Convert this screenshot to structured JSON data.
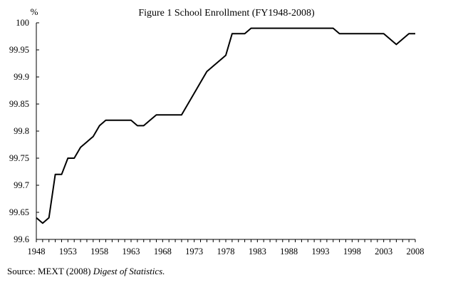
{
  "chart_data": {
    "type": "line",
    "title": "Figure 1 School Enrollment (FY1948-2008)",
    "y_unit_label": "%",
    "xlabel": "",
    "ylabel": "",
    "xlim": [
      1948,
      2008
    ],
    "ylim": [
      99.6,
      100
    ],
    "x_ticks": [
      "1948",
      "1953",
      "1958",
      "1963",
      "1968",
      "1973",
      "1978",
      "1983",
      "1988",
      "1993",
      "1998",
      "2003",
      "2008"
    ],
    "y_ticks": [
      "100",
      "99.95",
      "99.9",
      "99.85",
      "99.8",
      "99.75",
      "99.7",
      "99.65",
      "99.6"
    ],
    "grid": false,
    "series": [
      {
        "x": [
          1948,
          1949,
          1950,
          1951,
          1952,
          1953,
          1954,
          1955,
          1956,
          1957,
          1958,
          1959,
          1960,
          1961,
          1962,
          1963,
          1964,
          1965,
          1966,
          1967,
          1968,
          1969,
          1970,
          1971,
          1972,
          1973,
          1974,
          1975,
          1976,
          1977,
          1978,
          1979,
          1980,
          1981,
          1982,
          1983,
          1984,
          1985,
          1986,
          1987,
          1988,
          1989,
          1990,
          1991,
          1992,
          1993,
          1994,
          1995,
          1996,
          1997,
          1998,
          1999,
          2000,
          2001,
          2002,
          2003,
          2004,
          2005,
          2006,
          2007,
          2008
        ],
        "values": [
          99.64,
          99.63,
          99.64,
          99.72,
          99.72,
          99.75,
          99.75,
          99.77,
          99.78,
          99.79,
          99.81,
          99.82,
          99.82,
          99.82,
          99.82,
          99.82,
          99.81,
          99.81,
          99.82,
          99.83,
          99.83,
          99.83,
          99.83,
          99.83,
          99.85,
          99.87,
          99.89,
          99.91,
          99.92,
          99.93,
          99.94,
          99.98,
          99.98,
          99.98,
          99.99,
          99.99,
          99.99,
          99.99,
          99.99,
          99.99,
          99.99,
          99.99,
          99.99,
          99.99,
          99.99,
          99.99,
          99.99,
          99.99,
          99.98,
          99.98,
          99.98,
          99.98,
          99.98,
          99.98,
          99.98,
          99.98,
          99.97,
          99.96,
          99.97,
          99.98,
          99.98
        ],
        "color": "#000000"
      }
    ]
  },
  "source": {
    "prefix": "Source:  MEXT (2008) ",
    "italic": "Digest of Statistics."
  }
}
